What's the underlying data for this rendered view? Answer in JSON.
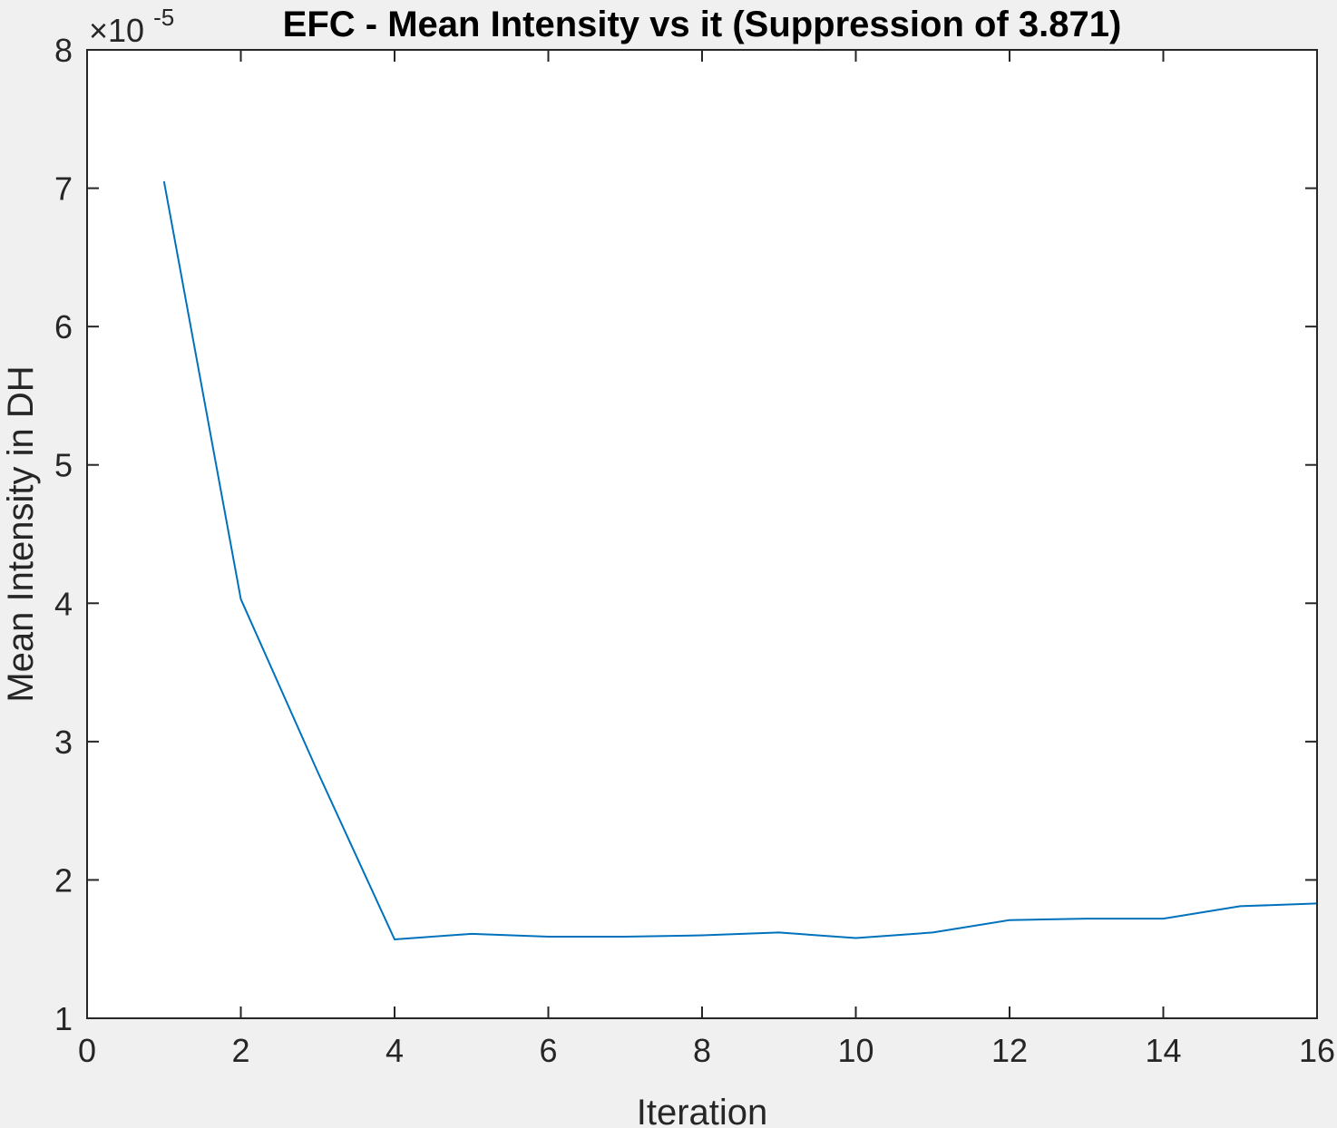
{
  "chart_data": {
    "type": "line",
    "title": "EFC - Mean Intensity vs it (Suppression of 3.871)",
    "xlabel": "Iteration",
    "ylabel": "Mean Intensity in DH",
    "xlim": [
      0,
      16
    ],
    "ylim": [
      1,
      8
    ],
    "y_multiplier": {
      "base": "×10",
      "exponent": "-5"
    },
    "x_ticks": [
      0,
      2,
      4,
      6,
      8,
      10,
      12,
      14,
      16
    ],
    "y_ticks": [
      1,
      2,
      3,
      4,
      5,
      6,
      7,
      8
    ],
    "grid": false,
    "box": true,
    "series": [
      {
        "color": "#0072bd",
        "x": [
          1,
          2,
          3,
          4,
          5,
          6,
          7,
          8,
          9,
          10,
          11,
          12,
          13,
          14,
          15,
          16
        ],
        "y": [
          7.05,
          4.03,
          2.78,
          1.57,
          1.61,
          1.59,
          1.59,
          1.6,
          1.62,
          1.58,
          1.62,
          1.71,
          1.72,
          1.72,
          1.81,
          1.83
        ]
      }
    ]
  }
}
